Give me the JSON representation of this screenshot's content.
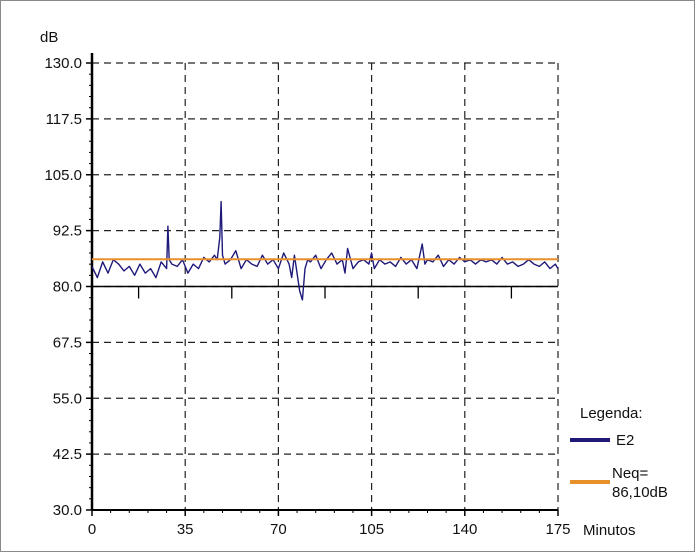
{
  "chart_data": {
    "type": "line",
    "title": "",
    "ylabel": "dB",
    "xlabel": "Minutos",
    "xlim": [
      0,
      175
    ],
    "ylim": [
      30,
      130
    ],
    "x_ticks": [
      "0",
      "35",
      "70",
      "105",
      "140",
      "175"
    ],
    "y_ticks": [
      "130.0",
      "117.5",
      "105.0",
      "92.5",
      "80.0",
      "67.5",
      "55.0",
      "42.5",
      "30.0"
    ],
    "grid": true,
    "legend_position": "bottom-right",
    "legend_title": "Legenda:",
    "series": [
      {
        "name": "E2",
        "color": "#1f1a7a",
        "x": [
          0,
          2,
          4,
          6,
          8,
          10,
          12,
          14,
          16,
          18,
          20,
          22,
          24,
          26,
          28,
          28.5,
          29,
          30,
          32,
          34,
          36,
          38,
          40,
          42,
          44,
          46,
          47,
          48,
          48.5,
          49,
          50,
          52,
          54,
          56,
          58,
          60,
          62,
          64,
          66,
          68,
          70,
          72,
          74,
          75,
          76,
          78,
          79,
          80,
          81,
          82,
          84,
          86,
          88,
          90,
          92,
          94,
          95,
          96,
          98,
          100,
          102,
          104,
          105,
          106,
          108,
          110,
          112,
          114,
          116,
          118,
          120,
          122,
          124,
          125,
          126,
          128,
          130,
          132,
          134,
          136,
          138,
          140,
          142,
          144,
          146,
          148,
          150,
          152,
          154,
          156,
          158,
          160,
          162,
          164,
          166,
          168,
          170,
          172,
          174,
          175
        ],
        "values": [
          84.5,
          82.0,
          85.5,
          83.0,
          86.0,
          85.0,
          83.5,
          84.5,
          82.5,
          85.0,
          83.0,
          84.0,
          82.0,
          85.5,
          84.0,
          93.5,
          86.0,
          85.0,
          84.5,
          86.0,
          83.0,
          85.0,
          84.0,
          86.5,
          85.5,
          87.0,
          86.0,
          91.0,
          99.0,
          87.0,
          85.0,
          86.0,
          88.0,
          84.0,
          86.0,
          85.0,
          84.5,
          87.0,
          85.0,
          86.0,
          84.0,
          87.5,
          85.0,
          82.0,
          87.0,
          79.0,
          77.0,
          84.0,
          86.0,
          85.5,
          87.0,
          84.0,
          86.0,
          87.5,
          85.0,
          86.0,
          83.0,
          88.5,
          84.0,
          85.5,
          86.0,
          85.0,
          87.5,
          84.0,
          86.0,
          85.0,
          85.5,
          84.5,
          86.5,
          85.0,
          86.0,
          84.0,
          89.5,
          85.0,
          86.0,
          85.5,
          87.0,
          84.5,
          86.0,
          85.0,
          86.5,
          85.5,
          86.0,
          85.0,
          86.0,
          85.5,
          86.0,
          85.0,
          86.5,
          85.0,
          85.5,
          84.5,
          85.0,
          86.0,
          85.0,
          84.5,
          85.5,
          84.0,
          85.0,
          84.0
        ]
      },
      {
        "name": "Neq=\n86,10dB",
        "color": "#e8902a",
        "x": [
          0,
          175
        ],
        "values": [
          86.1,
          86.1
        ]
      }
    ]
  },
  "legend": {
    "title": "Legenda:",
    "items": [
      {
        "label": "E2",
        "color": "#1f1a7a"
      },
      {
        "label_line1": "Neq=",
        "label_line2": "86,10dB",
        "color": "#e8902a"
      }
    ]
  }
}
